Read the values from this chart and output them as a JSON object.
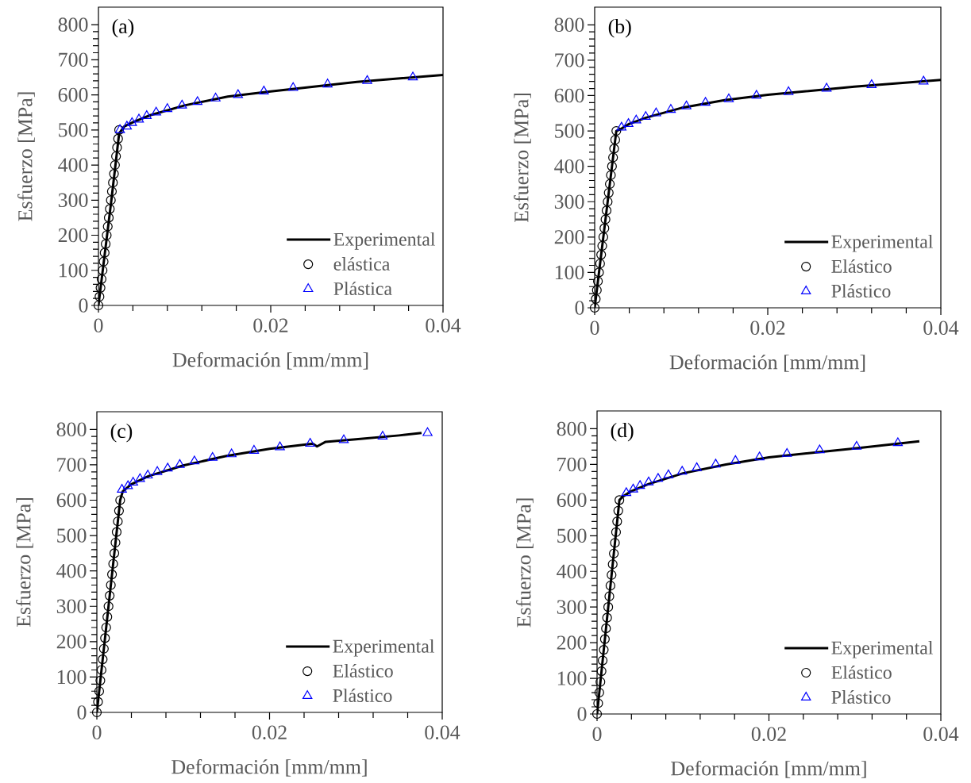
{
  "chart_data": [
    {
      "type": "line",
      "xlabel": "Deformación [mm/mm]",
      "ylabel": "Esfuerzo [MPa]",
      "annotations": [
        "(a)"
      ],
      "xlim": [
        0,
        0.04
      ],
      "ylim": [
        0,
        850
      ],
      "xticks": [
        0,
        0.02,
        0.04
      ],
      "yticks": [
        0,
        100,
        200,
        300,
        400,
        500,
        600,
        700,
        800
      ],
      "legend": "bottom right",
      "series": [
        {
          "name": "Experimental",
          "marker": "none",
          "color": "#000000",
          "x": [
            0,
            0.0006,
            0.0015,
            0.0024,
            0.003,
            0.004,
            0.006,
            0.01,
            0.015,
            0.02,
            0.03,
            0.04
          ],
          "values": [
            0,
            120,
            300,
            490,
            510,
            522,
            542,
            570,
            595,
            610,
            637,
            657
          ]
        },
        {
          "name": "elástica",
          "type": "scatter",
          "marker": "circle",
          "color": "#000000",
          "x": [
            0,
            0.00012,
            0.00024,
            0.00036,
            0.00048,
            0.0006,
            0.00072,
            0.00084,
            0.00096,
            0.00108,
            0.0012,
            0.00132,
            0.00144,
            0.00156,
            0.00168,
            0.0018,
            0.00192,
            0.00204,
            0.00216,
            0.00228,
            0.0024
          ],
          "values": [
            0,
            25,
            50,
            75,
            100,
            125,
            150,
            175,
            200,
            225,
            250,
            275,
            300,
            325,
            350,
            375,
            400,
            425,
            450,
            475,
            500
          ]
        },
        {
          "name": "Plástica",
          "type": "scatter",
          "marker": "triangle",
          "color": "#0000ff",
          "x": [
            0.0025,
            0.0033,
            0.0039,
            0.0047,
            0.0056,
            0.0067,
            0.008,
            0.0097,
            0.0115,
            0.0136,
            0.0162,
            0.0192,
            0.0226,
            0.0266,
            0.0312,
            0.0365
          ],
          "values": [
            500,
            510,
            520,
            530,
            540,
            550,
            560,
            570,
            580,
            590,
            600,
            610,
            620,
            630,
            640,
            650
          ]
        }
      ]
    },
    {
      "type": "line",
      "xlabel": "Deformación [mm/mm]",
      "ylabel": "Esfuerzo [MPa]",
      "annotations": [
        "(b)"
      ],
      "xlim": [
        0,
        0.04
      ],
      "ylim": [
        0,
        850
      ],
      "xticks": [
        0,
        0.02,
        0.04
      ],
      "yticks": [
        0,
        100,
        200,
        300,
        400,
        500,
        600,
        700,
        800
      ],
      "legend": "bottom right",
      "series": [
        {
          "name": "Experimental",
          "marker": "none",
          "color": "#000000",
          "x": [
            0,
            0.0025,
            0.003,
            0.004,
            0.006,
            0.01,
            0.015,
            0.02,
            0.03,
            0.04
          ],
          "values": [
            0,
            500,
            505,
            520,
            538,
            565,
            587,
            602,
            625,
            644
          ]
        },
        {
          "name": "Elástico",
          "type": "scatter",
          "marker": "circle",
          "color": "#000000",
          "x": [
            0,
            0.000125,
            0.00025,
            0.000375,
            0.0005,
            0.000625,
            0.00075,
            0.000875,
            0.001,
            0.001125,
            0.00125,
            0.001375,
            0.0015,
            0.001625,
            0.00175,
            0.001875,
            0.002,
            0.002125,
            0.00225,
            0.002375,
            0.0025
          ],
          "values": [
            0,
            25,
            50,
            75,
            100,
            125,
            150,
            175,
            200,
            225,
            250,
            275,
            300,
            325,
            350,
            375,
            400,
            425,
            450,
            475,
            500
          ]
        },
        {
          "name": "Plástico",
          "type": "scatter",
          "marker": "triangle",
          "color": "#0000ff",
          "x": [
            0.0031,
            0.0039,
            0.0048,
            0.0059,
            0.0071,
            0.0088,
            0.0106,
            0.0128,
            0.0155,
            0.0187,
            0.0224,
            0.0268,
            0.032,
            0.038
          ],
          "values": [
            510,
            520,
            530,
            540,
            550,
            560,
            570,
            580,
            590,
            600,
            610,
            620,
            630,
            640
          ]
        }
      ]
    },
    {
      "type": "line",
      "xlabel": "Deformación [mm/mm]",
      "ylabel": "Esfuerzo [MPa]",
      "annotations": [
        "(c)"
      ],
      "xlim": [
        0,
        0.04
      ],
      "ylim": [
        0,
        850
      ],
      "xticks": [
        0,
        0.02,
        0.04
      ],
      "yticks": [
        0,
        100,
        200,
        300,
        400,
        500,
        600,
        700,
        800
      ],
      "legend": "bottom right",
      "series": [
        {
          "name": "Experimental",
          "marker": "none",
          "color": "#000000",
          "x": [
            0,
            0.0027,
            0.003,
            0.004,
            0.006,
            0.01,
            0.015,
            0.02,
            0.025,
            0.0255,
            0.0265,
            0.03,
            0.035,
            0.0376
          ],
          "values": [
            0,
            600,
            625,
            645,
            668,
            698,
            725,
            745,
            760,
            752,
            765,
            772,
            783,
            790
          ]
        },
        {
          "name": "Elástico",
          "type": "scatter",
          "marker": "circle",
          "color": "#000000",
          "x": [
            0,
            0.000135,
            0.00027,
            0.000405,
            0.00054,
            0.000675,
            0.00081,
            0.000945,
            0.00108,
            0.001215,
            0.00135,
            0.001485,
            0.00162,
            0.001755,
            0.00189,
            0.002025,
            0.00216,
            0.002295,
            0.00243,
            0.002565,
            0.0027
          ],
          "values": [
            0,
            30,
            60,
            90,
            120,
            150,
            180,
            210,
            240,
            270,
            300,
            330,
            360,
            390,
            420,
            450,
            480,
            510,
            540,
            570,
            600
          ]
        },
        {
          "name": "Plástico",
          "type": "scatter",
          "marker": "triangle",
          "color": "#0000ff",
          "x": [
            0.0029,
            0.0036,
            0.0042,
            0.005,
            0.0059,
            0.007,
            0.0082,
            0.0096,
            0.0113,
            0.0134,
            0.0156,
            0.0182,
            0.0212,
            0.0247,
            0.0286,
            0.0331,
            0.0383
          ],
          "values": [
            630,
            640,
            650,
            660,
            670,
            680,
            690,
            700,
            710,
            720,
            730,
            740,
            750,
            760,
            770,
            780,
            790
          ]
        }
      ]
    },
    {
      "type": "line",
      "xlabel": "Deformación [mm/mm]",
      "ylabel": "Esfuerzo [MPa]",
      "annotations": [
        "(d)"
      ],
      "xlim": [
        0,
        0.04
      ],
      "ylim": [
        0,
        850
      ],
      "xticks": [
        0,
        0.02,
        0.04
      ],
      "yticks": [
        0,
        100,
        200,
        300,
        400,
        500,
        600,
        700,
        800
      ],
      "legend": "bottom right",
      "series": [
        {
          "name": "Experimental",
          "marker": "none",
          "color": "#000000",
          "x": [
            0,
            0.0026,
            0.003,
            0.004,
            0.006,
            0.01,
            0.015,
            0.02,
            0.03,
            0.0375
          ],
          "values": [
            0,
            600,
            610,
            625,
            645,
            675,
            700,
            720,
            745,
            765
          ]
        },
        {
          "name": "Elástico",
          "type": "scatter",
          "marker": "circle",
          "color": "#000000",
          "x": [
            0,
            0.00013,
            0.00026,
            0.00039,
            0.00052,
            0.00065,
            0.00078,
            0.00091,
            0.00104,
            0.00117,
            0.0013,
            0.00143,
            0.00156,
            0.00169,
            0.00182,
            0.00195,
            0.00208,
            0.00221,
            0.00234,
            0.00247,
            0.0026
          ],
          "values": [
            0,
            30,
            60,
            90,
            120,
            150,
            180,
            210,
            240,
            270,
            300,
            330,
            360,
            390,
            420,
            450,
            480,
            510,
            540,
            570,
            600
          ]
        },
        {
          "name": "Plástico",
          "type": "scatter",
          "marker": "triangle",
          "color": "#0000ff",
          "x": [
            0.0034,
            0.0042,
            0.005,
            0.006,
            0.0071,
            0.0083,
            0.0099,
            0.0116,
            0.0138,
            0.0161,
            0.0189,
            0.0221,
            0.0259,
            0.0302,
            0.035
          ],
          "values": [
            620,
            630,
            640,
            650,
            660,
            670,
            680,
            690,
            700,
            710,
            720,
            730,
            740,
            750,
            760
          ]
        }
      ]
    }
  ]
}
